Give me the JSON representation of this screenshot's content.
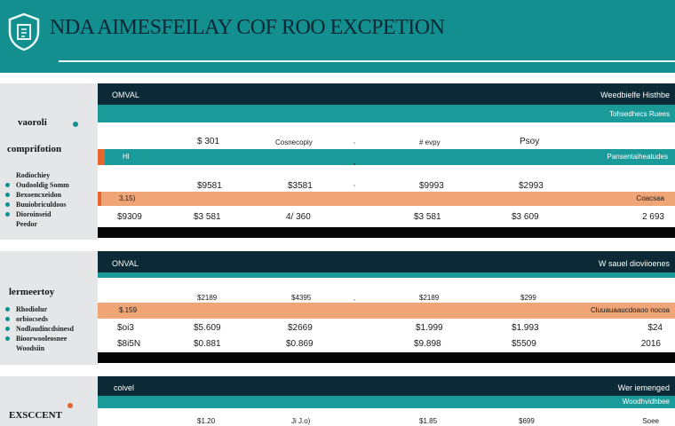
{
  "header": {
    "title": "NDA AIMESFEILAY COF ROO EXCPETION",
    "logo_icon": "shield-icon"
  },
  "sections": [
    {
      "side_heading_1": "vaoroli",
      "side_heading_2": "comprifotion",
      "side_items": [
        "Rodiochiey",
        "Oudooldig Somm",
        "Bexoencxeidon",
        "Buuiobriculdoos",
        "Dioroinseid",
        "Peedor"
      ],
      "title_left": "OMVAL",
      "title_right": "Weedbielfe Histhbe",
      "subheader_right": "Tohsedhecs Ruees",
      "header_row": [
        "$ 301",
        "Cosnecopiy",
        "# evpy",
        "Psoy"
      ],
      "teal_left": "Hl",
      "teal_right": "Pansentaiheatudes",
      "value_row": [
        "$9581",
        "$3581",
        "$9993",
        "$2993"
      ],
      "orange_left": "3,15)",
      "orange_right": "Coacsaa",
      "data_row": [
        "$9309",
        "$3 581",
        "4/ 360",
        "$3 581",
        "$3 609",
        "2 693"
      ]
    },
    {
      "side_heading_1": "lermeertoy",
      "side_items": [
        "Rhodiolur",
        "orbiocseds",
        "Nodlaudincdsinesd",
        "Bioorwooleosnee",
        "Woodsiin"
      ],
      "title_left": "ONVAL",
      "title_right": "W sauel dioviioenes",
      "header_row": [
        "$2189",
        "$4395",
        "$2189",
        "$299"
      ],
      "orange_left": "$.159",
      "orange_right": "Cluuauaaucdoaoo nocoa",
      "row_1": [
        "$oi3",
        "$5.609",
        "$2669",
        "$1.999",
        "$1.993",
        "$24"
      ],
      "row_2": [
        "$8i5N",
        "$0.881",
        "$0.869",
        "$9.898",
        "$5509",
        "2016"
      ]
    },
    {
      "side_heading_1": "EXSCCENT",
      "title_left": "coivel",
      "title_right": "Wer iemenged",
      "subheader_right": "Woodhvidhbee",
      "header_row": [
        "$1.20",
        "Ji J.o)",
        "$1.85",
        "$699",
        "Soee"
      ]
    }
  ],
  "colors": {
    "header_teal": "#138f8f",
    "dark_navy": "#0c2a36",
    "teal_band": "#1a9a98",
    "orange_band": "#f0a577",
    "accent_orange": "#e7652e",
    "sidebar_gray": "#e4e6e8"
  }
}
